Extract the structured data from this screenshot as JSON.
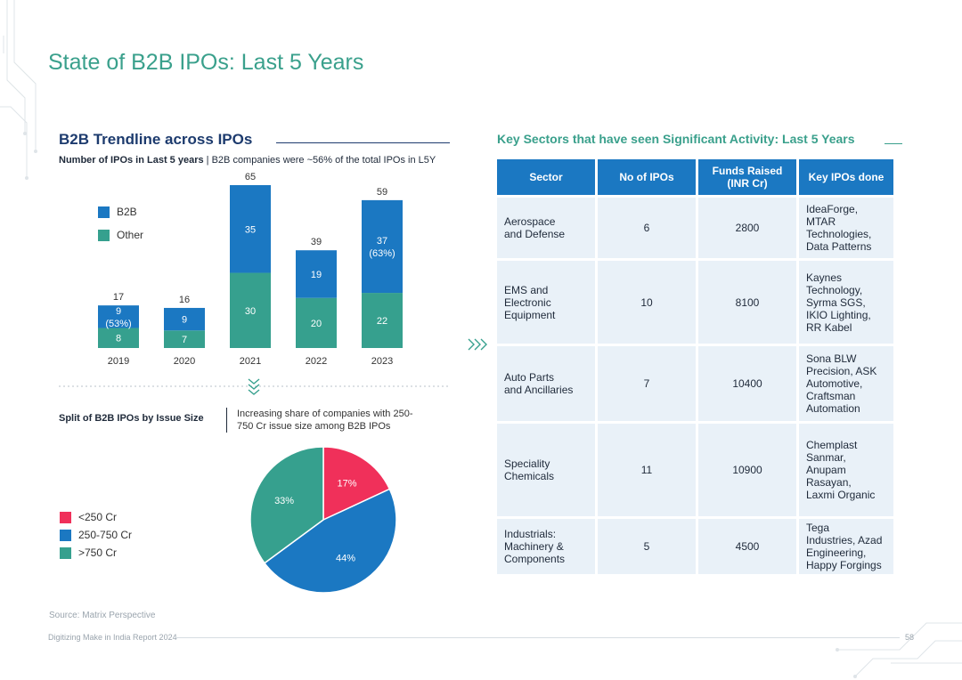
{
  "page": {
    "title": "State of B2B IPOs: Last 5 Years",
    "source": "Source: Matrix Perspective",
    "footer_left": "Digitizing Make in India Report 2024",
    "page_number": "58"
  },
  "trend": {
    "heading": "B2B Trendline across IPOs",
    "subtitle_bold": "Number of IPOs in Last 5 years",
    "subtitle_rest": " | B2B companies were ~56% of the total IPOs in L5Y"
  },
  "split": {
    "heading": "Split of B2B IPOs by Issue Size",
    "note": "Increasing share of companies with 250-750 Cr issue size among B2B IPOs"
  },
  "colors": {
    "b2b": "#1b78c2",
    "other": "#36a08e",
    "lt250": "#f0305a",
    "mid": "#1b78c2",
    "gt750": "#36a08e",
    "accent": "#3aa08c"
  },
  "chart_data": [
    {
      "type": "bar",
      "stacked": true,
      "categories": [
        "2019",
        "2020",
        "2021",
        "2022",
        "2023"
      ],
      "series": [
        {
          "name": "Other",
          "values": [
            8,
            7,
            30,
            20,
            22
          ]
        },
        {
          "name": "B2B",
          "values": [
            9,
            9,
            35,
            19,
            37
          ]
        }
      ],
      "totals": [
        17,
        16,
        65,
        39,
        59
      ],
      "b2b_labels": [
        "9\n(53%)",
        "9",
        "35",
        "19",
        "37\n(63%)"
      ],
      "legend": [
        "B2B",
        "Other"
      ],
      "ylim": [
        0,
        65
      ]
    },
    {
      "type": "pie",
      "labels": [
        "<250 Cr",
        "250-750 Cr",
        ">750 Cr"
      ],
      "values": [
        17,
        44,
        33
      ],
      "value_labels": [
        "17%",
        "44%",
        "33%"
      ]
    }
  ],
  "sectors": {
    "heading": "Key Sectors that have seen Significant Activity: Last 5 Years",
    "columns": [
      "Sector",
      "No of IPOs",
      "Funds Raised\n(INR Cr)",
      "Key IPOs done"
    ],
    "rows": [
      {
        "sector": "Aerospace\nand Defense",
        "ipos": "6",
        "funds": "2800",
        "key": "IdeaForge, MTAR\nTechnologies,\nData Patterns"
      },
      {
        "sector": "EMS and\nElectronic\nEquipment",
        "ipos": "10",
        "funds": "8100",
        "key": "Kaynes\nTechnology,\nSyrma SGS,\nIKIO Lighting,\nRR Kabel"
      },
      {
        "sector": "Auto Parts\nand Ancillaries",
        "ipos": "7",
        "funds": "10400",
        "key": "Sona BLW\nPrecision, ASK\nAutomotive,\nCraftsman\nAutomation"
      },
      {
        "sector": "Speciality\nChemicals",
        "ipos": "11",
        "funds": "10900",
        "key": "Chemplast\nSanmar,\nAnupam\nRasayan,\nLaxmi Organic"
      },
      {
        "sector": "Industrials:\nMachinery &\nComponents",
        "ipos": "5",
        "funds": "4500",
        "key": "Tega\nIndustries, Azad\nEngineering,\nHappy Forgings"
      }
    ]
  }
}
